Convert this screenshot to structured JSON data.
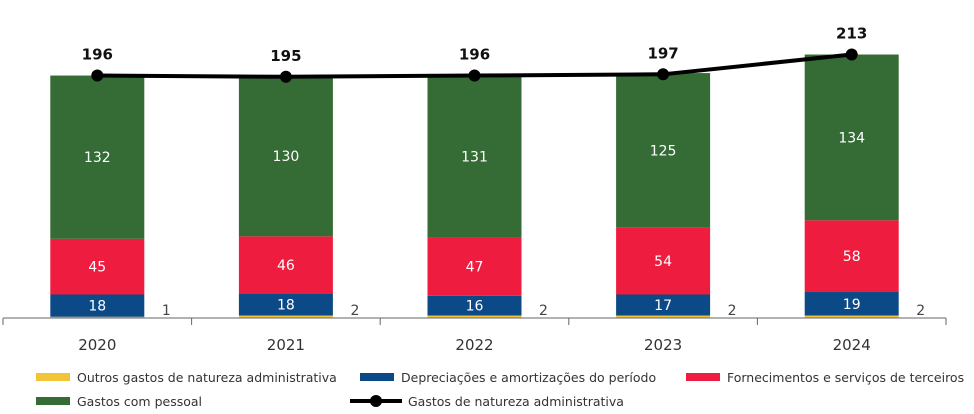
{
  "chart_data": {
    "type": "bar",
    "stacked": true,
    "categories": [
      "2020",
      "2021",
      "2022",
      "2023",
      "2024"
    ],
    "series": [
      {
        "name": "Outros gastos de natureza administrativa",
        "values": [
          1,
          2,
          2,
          2,
          2
        ],
        "color": "#f2c438"
      },
      {
        "name": "Depreciações e amortizações do período",
        "values": [
          18,
          18,
          16,
          17,
          19
        ],
        "color": "#0b4a87"
      },
      {
        "name": "Fornecimentos e serviços de terceiros",
        "values": [
          45,
          46,
          47,
          54,
          58
        ],
        "color": "#ee1c3e"
      },
      {
        "name": "Gastos com pessoal",
        "values": [
          132,
          130,
          131,
          125,
          134
        ],
        "color": "#356b35"
      }
    ],
    "line_series": {
      "name": "Gastos de natureza administrativa",
      "values": [
        196,
        195,
        196,
        197,
        213
      ],
      "color": "#000000"
    },
    "ylim": [
      0,
      250
    ],
    "grid": false,
    "legend_position": "bottom"
  }
}
